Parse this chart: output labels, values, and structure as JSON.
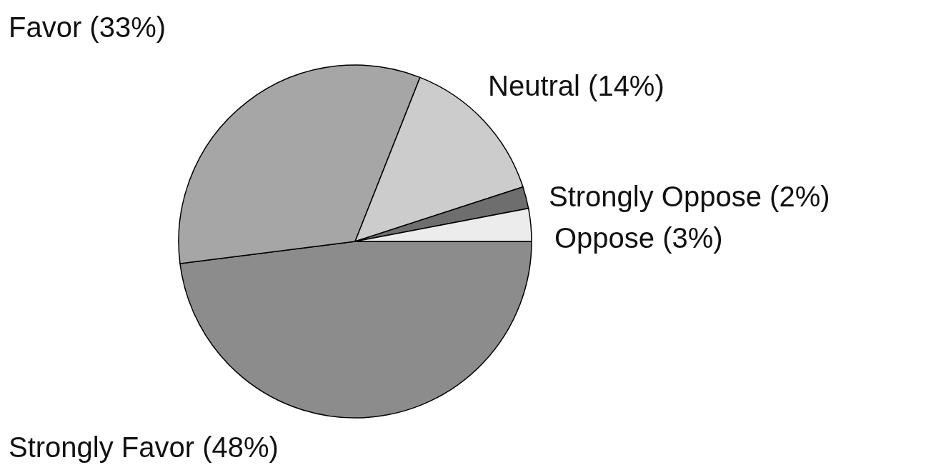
{
  "chart_data": {
    "type": "pie",
    "categories": [
      "Strongly Favor",
      "Favor",
      "Neutral",
      "Strongly Oppose",
      "Oppose"
    ],
    "values": [
      48,
      33,
      14,
      2,
      3
    ],
    "value_labels": [
      "(48%)",
      "(33%)",
      "(14%)",
      "(2%)",
      "(3%)"
    ],
    "colors": [
      "#8c8c8c",
      "#a6a6a6",
      "#cccccc",
      "#6e6e6e",
      "#ececec"
    ]
  }
}
